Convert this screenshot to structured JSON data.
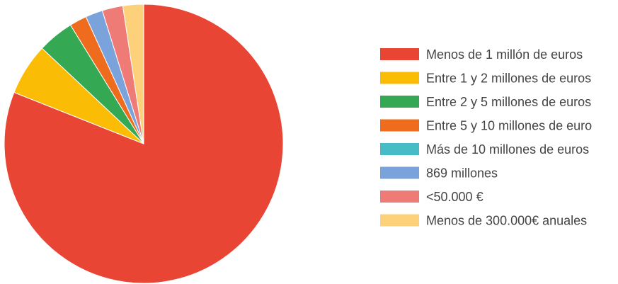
{
  "chart_data": {
    "type": "pie",
    "title": "",
    "legend_position": "right",
    "slices": [
      {
        "label": "Menos de 1 millón de euros",
        "value": 81.0,
        "color": "#e94535"
      },
      {
        "label": "Entre 1 y 2 millones de euros",
        "value": 6.0,
        "color": "#fbbc05"
      },
      {
        "label": "Entre 2 y 5 millones de euros",
        "value": 4.2,
        "color": "#34a853"
      },
      {
        "label": "Entre 5 y 10 millones de euro",
        "value": 2.0,
        "color": "#ef6c1e"
      },
      {
        "label": "Más de 10 millones de euros",
        "value": 0.0,
        "color": "#46bdc6"
      },
      {
        "label": "869 millones",
        "value": 2.0,
        "color": "#7aa3dc"
      },
      {
        "label": "<50.000 €",
        "value": 2.4,
        "color": "#ef7b77"
      },
      {
        "label": "Menos de 300.000€ anuales",
        "value": 2.4,
        "color": "#fdd07a"
      }
    ]
  }
}
